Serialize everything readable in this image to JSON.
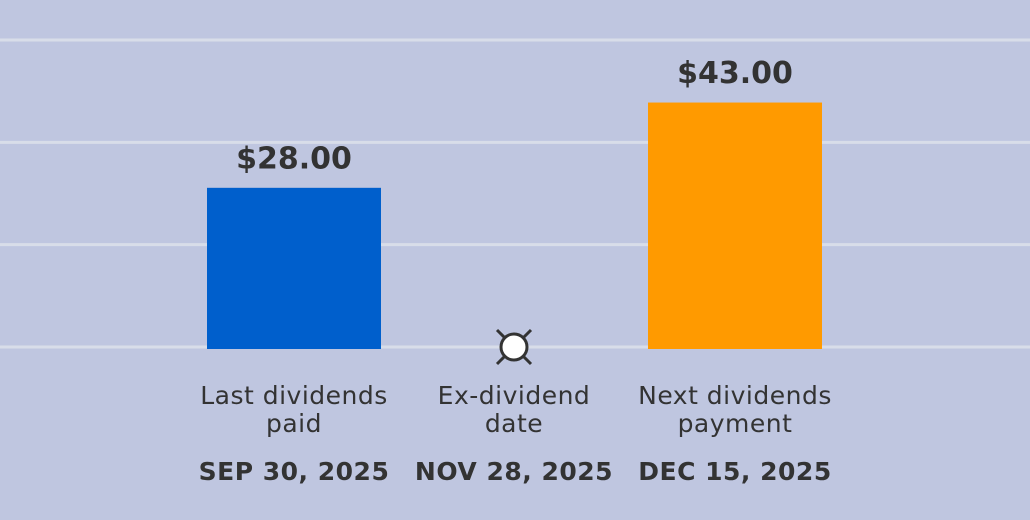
{
  "chart_data": {
    "type": "bar",
    "categories": [
      "Last dividends paid",
      "Ex-dividend date",
      "Next dividends payment"
    ],
    "dates": [
      "SEP 30, 2025",
      "NOV 28, 2025",
      "DEC 15, 2025"
    ],
    "values": [
      28,
      null,
      43
    ],
    "value_labels": [
      "$28.00",
      null,
      "$43.00"
    ],
    "colors": [
      "#005fcc",
      "#ffffff",
      "#ff9a00"
    ],
    "ylim": [
      0,
      54
    ],
    "yticks": [
      0,
      18,
      36,
      54
    ],
    "grid": true
  }
}
